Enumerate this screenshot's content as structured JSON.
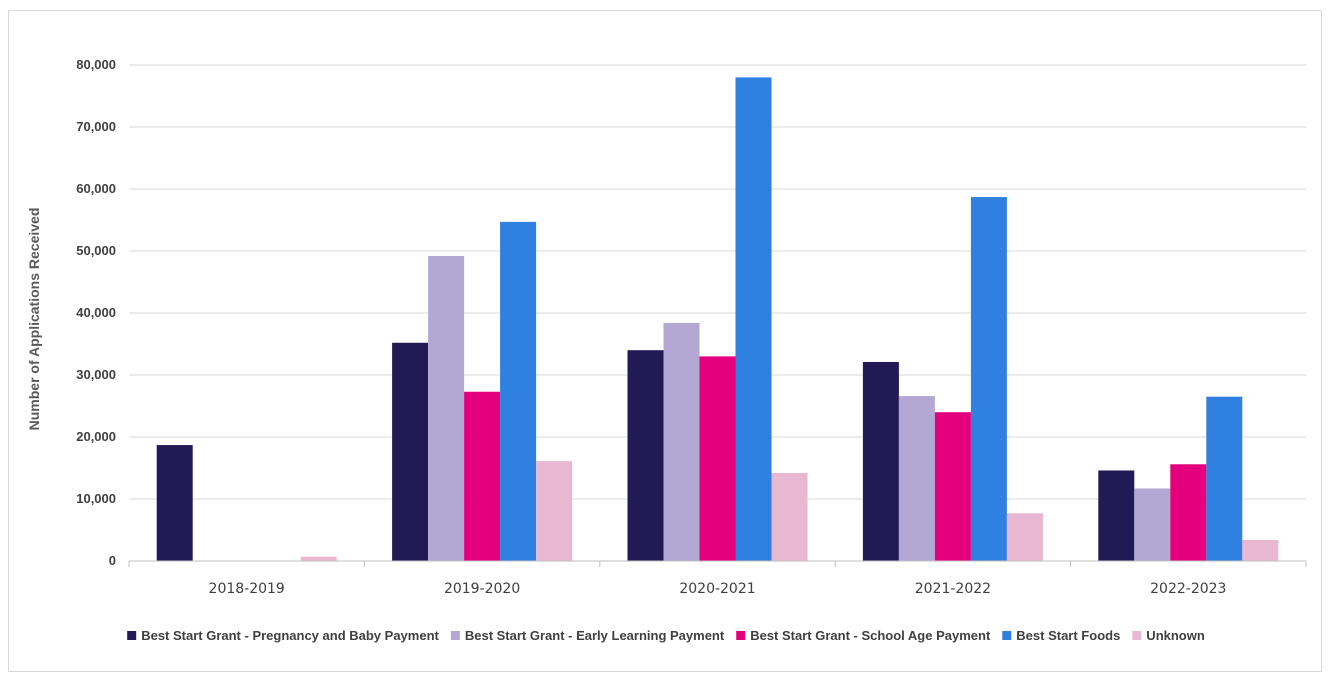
{
  "chart_data": {
    "type": "bar",
    "title": "",
    "xlabel": "",
    "ylabel": "Number  of Applications Received",
    "ylim": [
      0,
      80000
    ],
    "yticks": [
      0,
      10000,
      20000,
      30000,
      40000,
      50000,
      60000,
      70000,
      80000
    ],
    "ytick_labels": [
      "0",
      "10,000",
      "20,000",
      "30,000",
      "40,000",
      "50,000",
      "60,000",
      "70,000",
      "80,000"
    ],
    "grid": true,
    "legend_position": "bottom",
    "categories": [
      "2018-2019",
      "2019-2020",
      "2020-2021",
      "2021-2022",
      "2022-2023"
    ],
    "series": [
      {
        "name": "Best Start Grant - Pregnancy and Baby Payment",
        "color": "#221a55",
        "values": [
          18700,
          35200,
          34000,
          32100,
          14600
        ]
      },
      {
        "name": "Best Start Grant - Early Learning Payment",
        "color": "#b3a8d4",
        "values": [
          0,
          49200,
          38400,
          26600,
          11700
        ]
      },
      {
        "name": "Best Start Grant - School Age Payment",
        "color": "#e4007c",
        "values": [
          0,
          27300,
          33000,
          24000,
          15600
        ]
      },
      {
        "name": "Best Start Foods",
        "color": "#2f80e1",
        "values": [
          0,
          54700,
          78000,
          58700,
          26500
        ]
      },
      {
        "name": "Unknown",
        "color": "#e8b8d2",
        "values": [
          700,
          16100,
          14200,
          7700,
          3400
        ]
      }
    ]
  }
}
